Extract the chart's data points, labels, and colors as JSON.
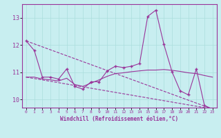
{
  "xlabel": "Windchill (Refroidissement éolien,°C)",
  "bg_color": "#c8eef0",
  "grid_color": "#aadddd",
  "line_color": "#993399",
  "xlim": [
    -0.5,
    23.5
  ],
  "ylim": [
    9.7,
    13.5
  ],
  "yticks": [
    10,
    11,
    12,
    13
  ],
  "xticks": [
    0,
    1,
    2,
    3,
    4,
    5,
    6,
    7,
    8,
    9,
    10,
    11,
    12,
    13,
    14,
    15,
    16,
    17,
    18,
    19,
    20,
    21,
    22,
    23
  ],
  "series": [
    {
      "x": [
        0,
        1,
        2,
        3,
        4,
        5,
        6,
        7,
        8,
        9,
        10,
        11,
        12,
        13,
        14,
        15,
        16,
        17,
        18,
        19,
        20,
        21,
        22,
        23
      ],
      "y": [
        12.15,
        11.8,
        10.82,
        10.82,
        10.75,
        11.12,
        10.48,
        10.38,
        10.65,
        10.65,
        11.05,
        11.22,
        11.17,
        11.22,
        11.32,
        13.05,
        13.28,
        12.02,
        11.02,
        10.32,
        10.17,
        11.12,
        9.78,
        9.65
      ],
      "style": "-",
      "marker": "+"
    },
    {
      "x": [
        0,
        23
      ],
      "y": [
        12.15,
        9.65
      ],
      "style": "--",
      "marker": null
    },
    {
      "x": [
        0,
        1,
        2,
        3,
        4,
        5,
        6,
        7,
        8,
        9,
        10,
        11,
        12,
        13,
        14,
        15,
        16,
        17,
        18,
        19,
        20,
        21,
        22,
        23
      ],
      "y": [
        10.82,
        10.82,
        10.75,
        10.72,
        10.68,
        10.78,
        10.55,
        10.48,
        10.6,
        10.72,
        10.85,
        10.95,
        10.98,
        11.02,
        11.05,
        11.08,
        11.08,
        11.1,
        11.07,
        11.03,
        10.98,
        10.95,
        10.88,
        10.82
      ],
      "style": "-",
      "marker": null
    },
    {
      "x": [
        0,
        23
      ],
      "y": [
        10.82,
        9.65
      ],
      "style": "--",
      "marker": null
    }
  ]
}
